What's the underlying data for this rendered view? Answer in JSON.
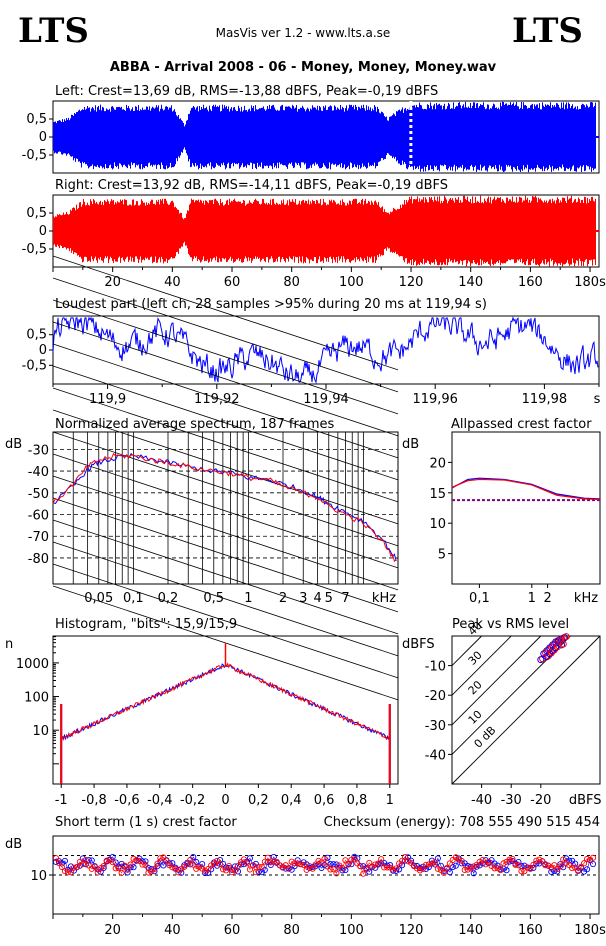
{
  "header": {
    "logo_left": "LTS",
    "logo_right": "LTS",
    "app": "MasVis ver 1.2 - www.lts.a.se",
    "file_title": "ABBA - Arrival 2008 - 06 - Money, Money, Money.wav"
  },
  "colors": {
    "left": "#0000ff",
    "right": "#ff0000",
    "dotted": "#800080"
  },
  "chart_data": [
    {
      "type": "line",
      "id": "left-waveform",
      "title": "Left: Crest=13,69 dB, RMS=-13,88 dBFS, Peak=-0,19 dBFS",
      "xlim": [
        0,
        183
      ],
      "ylim": [
        -1,
        1
      ],
      "yticks": [
        "0,5",
        "0",
        "-0,5"
      ],
      "envelope": {
        "x": [
          0,
          5,
          10,
          20,
          30,
          40,
          44,
          46,
          55,
          60,
          70,
          80,
          90,
          100,
          108,
          112,
          118,
          120,
          140,
          160,
          180
        ],
        "amp": [
          0.45,
          0.55,
          0.9,
          0.9,
          0.9,
          0.9,
          0.35,
          0.9,
          0.9,
          0.9,
          0.9,
          0.9,
          0.9,
          0.9,
          0.9,
          0.55,
          0.9,
          0.98,
          0.98,
          0.98,
          0.98
        ]
      },
      "marker_x": 119.94
    },
    {
      "type": "line",
      "id": "right-waveform",
      "title": "Right: Crest=13,92 dB, RMS=-14,11 dBFS, Peak=-0,19 dBFS",
      "xlim": [
        0,
        183
      ],
      "ylim": [
        -1,
        1
      ],
      "yticks": [
        "0,5",
        "0",
        "-0,5"
      ],
      "xticks": [
        "20",
        "40",
        "60",
        "80",
        "100",
        "120",
        "140",
        "160",
        "180s"
      ],
      "envelope": {
        "x": [
          0,
          5,
          10,
          20,
          30,
          40,
          44,
          46,
          55,
          60,
          70,
          80,
          90,
          100,
          108,
          112,
          118,
          120,
          140,
          160,
          180
        ],
        "amp": [
          0.45,
          0.55,
          0.9,
          0.9,
          0.9,
          0.9,
          0.35,
          0.9,
          0.9,
          0.9,
          0.9,
          0.9,
          0.9,
          0.9,
          0.9,
          0.55,
          0.9,
          0.98,
          0.98,
          0.98,
          0.98
        ]
      }
    },
    {
      "type": "line",
      "id": "loudest-part",
      "title": "Loudest part (left  ch, 28 samples >95% during 20 ms at 119,94 s)",
      "xlim": [
        119.89,
        119.99
      ],
      "ylim": [
        -1,
        1
      ],
      "yticks": [
        "0,5",
        "0",
        "-0,5"
      ],
      "xticks": [
        "119,9",
        "119,92",
        "119,94",
        "119,96",
        "119,98",
        "s"
      ]
    },
    {
      "type": "line",
      "id": "spectrum",
      "title": "Normalized average spectrum, 187 frames",
      "ylabel": "dB",
      "yticks": [
        "-30",
        "-40",
        "-50",
        "-60",
        "-70",
        "-80"
      ],
      "xticks": [
        "0,05",
        "0,1",
        "0,2",
        "0,5",
        "1",
        "2",
        "3",
        "4",
        "5",
        "7",
        "kHz"
      ],
      "ylim": [
        -90,
        -20
      ],
      "series": [
        {
          "x": [
            0.02,
            0.03,
            0.04,
            0.05,
            0.07,
            0.1,
            0.15,
            0.2,
            0.3,
            0.5,
            0.7,
            1,
            1.5,
            2,
            3,
            4,
            5,
            7,
            10,
            15,
            20
          ],
          "values": [
            -55,
            -47,
            -39,
            -36,
            -34,
            -33,
            -35,
            -36,
            -38,
            -40,
            -41,
            -43,
            -44,
            -46,
            -49,
            -52,
            -55,
            -59,
            -63,
            -72,
            -82
          ]
        },
        {
          "x": [
            0.02,
            0.03,
            0.04,
            0.05,
            0.07,
            0.1,
            0.15,
            0.2,
            0.3,
            0.5,
            0.7,
            1,
            1.5,
            2,
            3,
            4,
            5,
            7,
            10,
            15,
            20
          ],
          "values": [
            -55,
            -46,
            -38,
            -35,
            -33,
            -33,
            -35,
            -36,
            -38,
            -40,
            -41,
            -43,
            -44,
            -47,
            -50,
            -52,
            -56,
            -60,
            -64,
            -73,
            -83
          ]
        }
      ]
    },
    {
      "type": "line",
      "id": "allpassed-crest",
      "title": "Allpassed crest factor",
      "ylabel": "dB",
      "yticks": [
        "20",
        "15",
        "10",
        "5"
      ],
      "xticks": [
        "0,1",
        "1",
        "2",
        "kHz"
      ],
      "ylim": [
        0,
        25
      ],
      "series": [
        {
          "x": [
            0.03,
            0.06,
            0.1,
            0.3,
            1,
            3,
            10,
            20
          ],
          "values": [
            15.8,
            17.2,
            17.4,
            17.2,
            16.4,
            14.8,
            14.1,
            14.0
          ]
        },
        {
          "x": [
            0.03,
            0.06,
            0.1,
            0.3,
            1,
            3,
            10,
            20
          ],
          "values": [
            15.9,
            17.0,
            17.2,
            17.1,
            16.3,
            14.6,
            14.0,
            13.9
          ]
        }
      ],
      "reference_line": 13.8
    },
    {
      "type": "line",
      "id": "histogram",
      "title": "Histogram, \"bits\": 15,9/15,9",
      "ylabel": "n",
      "yticks": [
        "1000",
        "100",
        "10"
      ],
      "xticks": [
        "-1",
        "-0,8",
        "-0,6",
        "-0,4",
        "-0,2",
        "0",
        "0,2",
        "0,4",
        "0,6",
        "0,8",
        "1"
      ],
      "xlim": [
        -1.05,
        1.05
      ]
    },
    {
      "type": "scatter",
      "id": "peak-vs-rms",
      "title": "Peak vs RMS level",
      "ylabel": "dBFS",
      "yticks": [
        "-10",
        "-20",
        "-30",
        "-40"
      ],
      "xticks": [
        "-40",
        "-30",
        "-20",
        "dBFS"
      ],
      "diagonal_labels": [
        "40",
        "30",
        "20",
        "10",
        "0 dB"
      ],
      "xlim": [
        -50,
        0
      ],
      "ylim": [
        -50,
        0
      ],
      "points": {
        "x": [
          -20,
          -19,
          -18,
          -17,
          -16,
          -15,
          -14,
          -13,
          -12,
          -18,
          -16,
          -14,
          -13,
          -15,
          -17
        ],
        "y": [
          -8,
          -6,
          -5,
          -4,
          -3,
          -2,
          -1.5,
          -1,
          -0.5,
          -7,
          -5,
          -2,
          -3,
          -4,
          -6
        ]
      }
    },
    {
      "type": "scatter",
      "id": "short-term-crest",
      "title": "Short term (1 s) crest factor",
      "checksum": "Checksum (energy):   708 555 490 515 454",
      "ylabel": "dB",
      "yticks": [
        "10"
      ],
      "xticks": [
        "20",
        "40",
        "60",
        "80",
        "100",
        "120",
        "140",
        "160",
        "180s"
      ],
      "xlim": [
        0,
        183
      ],
      "ylim": [
        0,
        20
      ],
      "dotted_levels": [
        10,
        15
      ]
    }
  ]
}
